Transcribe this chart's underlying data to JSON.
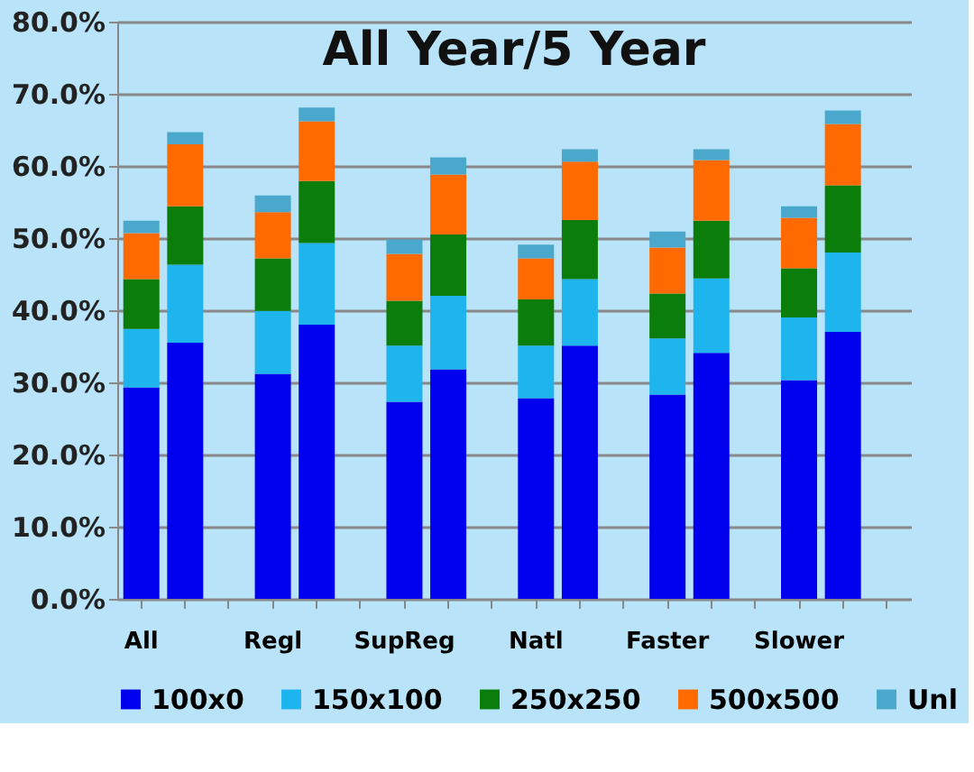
{
  "chart_data": {
    "type": "bar",
    "title": "All Year/5 Year",
    "stacked": true,
    "categories": [
      "All",
      null,
      null,
      "Regl",
      null,
      null,
      "SupReg",
      null,
      null,
      "Natl",
      null,
      null,
      "Faster",
      null,
      null,
      "Slower",
      null,
      null
    ],
    "series": [
      {
        "name": "100x0",
        "color": "#0000ee",
        "values": [
          29.3,
          35.5,
          null,
          31.2,
          38.0,
          null,
          27.3,
          31.8,
          null,
          27.8,
          35.1,
          null,
          28.3,
          34.1,
          null,
          30.3,
          37.0,
          null
        ]
      },
      {
        "name": "150x100",
        "color": "#1eb4ee",
        "values": [
          8.1,
          10.8,
          null,
          8.7,
          11.3,
          null,
          7.8,
          10.2,
          null,
          7.3,
          9.2,
          null,
          7.8,
          10.3,
          null,
          8.7,
          11.0,
          null
        ]
      },
      {
        "name": "250x250",
        "color": "#0a7d0a",
        "values": [
          6.9,
          8.1,
          null,
          7.3,
          8.6,
          null,
          6.2,
          8.5,
          null,
          6.4,
          8.2,
          null,
          6.2,
          8.0,
          null,
          6.8,
          9.3,
          null
        ]
      },
      {
        "name": "500x500",
        "color": "#ff6a00",
        "values": [
          6.4,
          8.6,
          null,
          6.4,
          8.3,
          null,
          6.5,
          8.3,
          null,
          5.7,
          8.1,
          null,
          6.4,
          8.4,
          null,
          7.0,
          8.5,
          null
        ]
      },
      {
        "name": "Unl",
        "color": "#4aa8cc",
        "values": [
          1.7,
          1.7,
          null,
          2.3,
          1.9,
          null,
          2.0,
          2.4,
          null,
          1.9,
          1.7,
          null,
          2.2,
          1.5,
          null,
          1.6,
          1.9,
          null
        ]
      }
    ],
    "ylim": [
      0,
      80
    ],
    "yticks": [
      {
        "value": 0,
        "label": "0.0%"
      },
      {
        "value": 10,
        "label": "10.0%"
      },
      {
        "value": 20,
        "label": "20.0%"
      },
      {
        "value": 30,
        "label": "30.0%"
      },
      {
        "value": 40,
        "label": "40.0%"
      },
      {
        "value": 50,
        "label": "50.0%"
      },
      {
        "value": 60,
        "label": "60.0%"
      },
      {
        "value": 70,
        "label": "70.0%"
      },
      {
        "value": 80,
        "label": "80.0%"
      }
    ],
    "grid": "y",
    "legend": "bottom"
  }
}
